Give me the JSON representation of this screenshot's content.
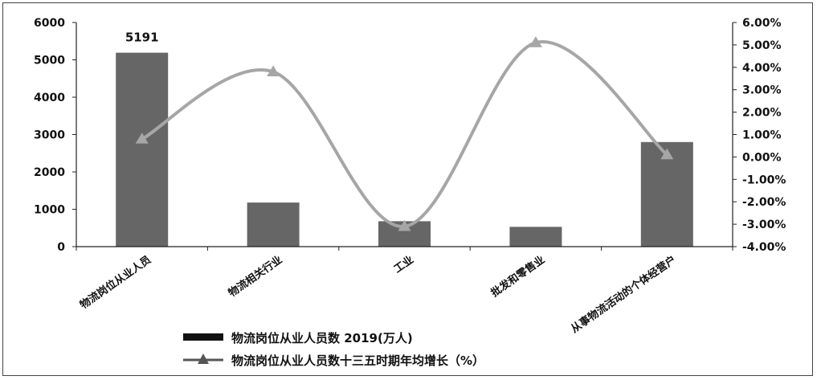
{
  "chart_data": {
    "type": "bar+line",
    "categories": [
      "物流岗位从业人员",
      "物流相关行业",
      "工业",
      "批发和零售业",
      "从事物流活动的个体经营户"
    ],
    "bar_series": {
      "name": "物流岗位从业人员数 2019(万人)",
      "values": [
        5191,
        1180,
        680,
        530,
        2800
      ],
      "color": "#666666"
    },
    "line_series": {
      "name": "物流岗位从业人员数十三五时期年均增长（%）",
      "values": [
        0.8,
        3.8,
        -3.1,
        5.1,
        0.1
      ],
      "color": "#a6a6a6",
      "marker": "triangle",
      "smooth": true
    },
    "data_labels": [
      {
        "category": "物流岗位从业人员",
        "text": "5191"
      }
    ],
    "y_left": {
      "min": 0,
      "max": 6000,
      "ticks": [
        "0",
        "1000",
        "2000",
        "3000",
        "4000",
        "5000",
        "6000"
      ]
    },
    "y_right": {
      "min": -4,
      "max": 6,
      "ticks": [
        "-4.00%",
        "-3.00%",
        "-2.00%",
        "-1.00%",
        "0.00%",
        "1.00%",
        "2.00%",
        "3.00%",
        "4.00%",
        "5.00%",
        "6.00%"
      ]
    },
    "legend_position": "bottom-left",
    "grid": false
  }
}
